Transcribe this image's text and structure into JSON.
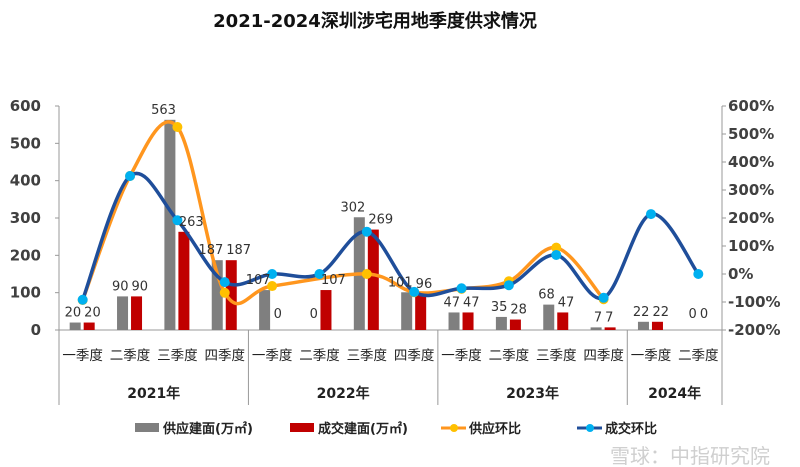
{
  "chart_data": {
    "type": "bar+line",
    "title": "2021-2024深圳涉宅用地季度供求情况",
    "categories": [
      "一季度",
      "二季度",
      "三季度",
      "四季度",
      "一季度",
      "二季度",
      "三季度",
      "四季度",
      "一季度",
      "二季度",
      "三季度",
      "四季度",
      "一季度",
      "二季度"
    ],
    "groups": [
      {
        "label": "2021年",
        "count": 4
      },
      {
        "label": "2022年",
        "count": 4
      },
      {
        "label": "2023年",
        "count": 4
      },
      {
        "label": "2024年",
        "count": 2
      }
    ],
    "left_axis": {
      "ylim": [
        0,
        600
      ],
      "ticks": [
        "0",
        "100",
        "200",
        "300",
        "400",
        "500",
        "600"
      ]
    },
    "right_axis": {
      "ylim": [
        -200,
        600
      ],
      "ticks": [
        "-200%",
        "-100%",
        "0%",
        "100%",
        "200%",
        "300%",
        "400%",
        "500%",
        "600%"
      ]
    },
    "series": [
      {
        "name": "供应建面(万㎡)",
        "type": "bar",
        "axis": "left",
        "color": "#7f7f7f",
        "values": [
          20,
          90,
          563,
          187,
          107,
          0,
          302,
          101,
          47,
          35,
          68,
          7,
          22,
          0
        ],
        "labels": [
          "20",
          "90",
          "563",
          "187",
          "107",
          "0",
          "302",
          "101",
          "47",
          "35",
          "68",
          "7",
          "22",
          "0"
        ]
      },
      {
        "name": "成交建面(万㎡)",
        "type": "bar",
        "axis": "left",
        "color": "#c00000",
        "values": [
          20,
          90,
          263,
          187,
          0,
          107,
          269,
          96,
          47,
          28,
          47,
          7,
          22,
          0
        ],
        "labels": [
          "20",
          "90",
          "263",
          "187",
          "0",
          "107",
          "269",
          "96",
          "47",
          "28",
          "47",
          "7",
          "22",
          "0"
        ]
      },
      {
        "name": "供应环比",
        "type": "line",
        "axis": "right",
        "color": "#ff961e",
        "marker": "#ffc000",
        "values": [
          -93,
          350,
          525,
          -67,
          -43,
          null,
          0,
          -65,
          -53,
          -26,
          94,
          -90,
          null,
          null
        ]
      },
      {
        "name": "成交环比",
        "type": "line",
        "axis": "right",
        "color": "#1f4e9a",
        "marker": "#00b0f0",
        "values": [
          -92,
          350,
          192,
          -29,
          0,
          0,
          151,
          -64,
          -51,
          -40,
          68,
          -85,
          214,
          0
        ]
      }
    ],
    "legend_position": "bottom",
    "grid": false
  },
  "watermark": "雪球：中指研究院"
}
